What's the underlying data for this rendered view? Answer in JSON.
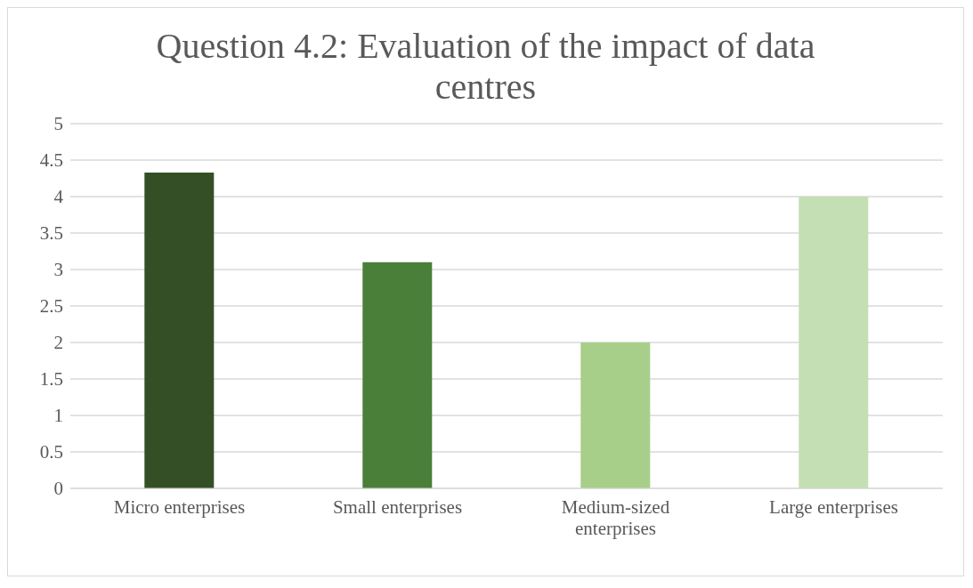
{
  "chart_data": {
    "type": "bar",
    "title": "Question 4.2: Evaluation of the impact of data centres",
    "categories": [
      "Micro enterprises",
      "Small enterprises",
      "Medium-sized enterprises",
      "Large enterprises"
    ],
    "values": [
      4.33,
      3.1,
      2,
      4
    ],
    "colors": [
      "#344f25",
      "#4a7f3a",
      "#a7cf8a",
      "#c4dfb3"
    ],
    "ylim": [
      0,
      5
    ],
    "yticks": [
      0,
      0.5,
      1,
      1.5,
      2,
      2.5,
      3,
      3.5,
      4,
      4.5,
      5
    ],
    "grid": "y"
  }
}
